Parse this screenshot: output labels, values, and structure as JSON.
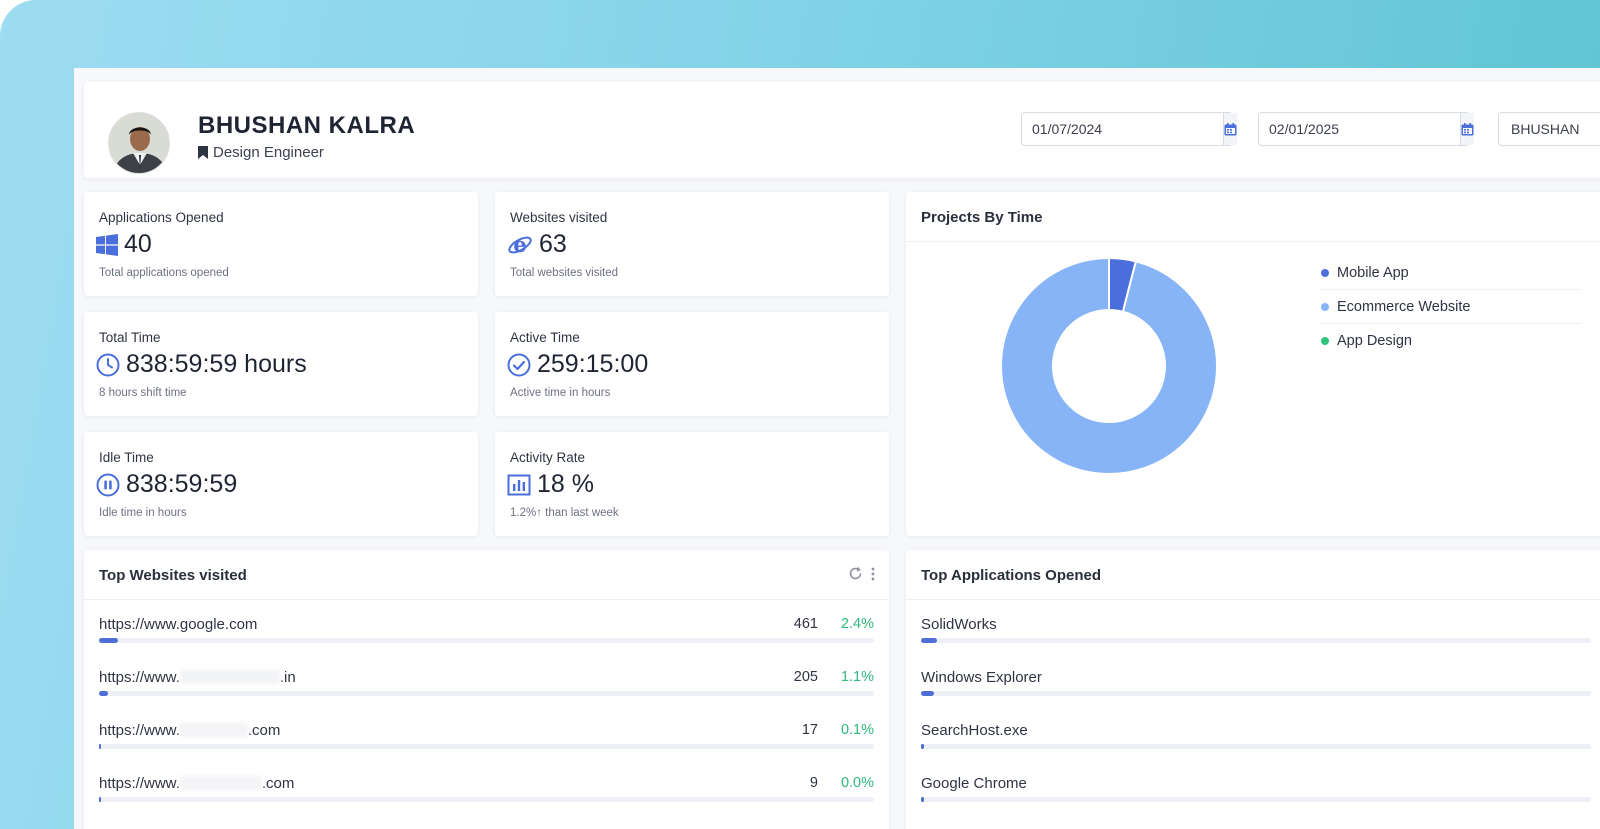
{
  "profile": {
    "name": "BHUSHAN KALRA",
    "role": "Design Engineer",
    "avatar_icon": "avatar-photo"
  },
  "filters": {
    "start_date": "01/07/2024",
    "end_date": "02/01/2025",
    "user": "BHUSHAN"
  },
  "stats": [
    {
      "label": "Applications Opened",
      "value": "40",
      "sub": "Total applications opened",
      "icon": "windows-icon"
    },
    {
      "label": "Websites visited",
      "value": "63",
      "sub": "Total websites visited",
      "icon": "internet-explorer-icon"
    },
    {
      "label": "Total Time",
      "value": "838:59:59 hours",
      "sub": "8 hours shift time",
      "icon": "clock-icon"
    },
    {
      "label": "Active Time",
      "value": "259:15:00",
      "sub": "Active time in hours",
      "icon": "check-circle-icon"
    },
    {
      "label": "Idle Time",
      "value": "838:59:59",
      "sub": "Idle time in hours",
      "icon": "pause-circle-icon"
    },
    {
      "label": "Activity Rate",
      "value": "18 %",
      "sub": "1.2%↑ than last week",
      "icon": "bar-chart-icon"
    }
  ],
  "projects": {
    "title": "Projects By Time",
    "legend": [
      {
        "label": "Mobile App",
        "color": "#4a6fdc"
      },
      {
        "label": "Ecommerce Website",
        "color": "#86b4f7"
      },
      {
        "label": "App Design",
        "color": "#2fc27b"
      }
    ],
    "chart_data": {
      "type": "pie",
      "title": "Projects By Time",
      "categories": [
        "Mobile App",
        "Ecommerce Website",
        "App Design"
      ],
      "values": [
        4,
        96,
        0
      ]
    }
  },
  "top_websites": {
    "title": "Top Websites visited",
    "items": [
      {
        "prefix": "https://www.google.com",
        "suffix": "",
        "count": "461",
        "pct": "2.4%",
        "bar": 2.4
      },
      {
        "prefix": "https://www.",
        "suffix": ".in",
        "count": "205",
        "pct": "1.1%",
        "bar": 1.1
      },
      {
        "prefix": "https://www.",
        "suffix": ".com",
        "count": "17",
        "pct": "0.1%",
        "bar": 0.1
      },
      {
        "prefix": "https://www.",
        "suffix": ".com",
        "count": "9",
        "pct": "0.0%",
        "bar": 0.0
      }
    ]
  },
  "top_applications": {
    "title": "Top Applications Opened",
    "items": [
      {
        "name": "SolidWorks",
        "bar": 2.4
      },
      {
        "name": "Windows Explorer",
        "bar": 2.0
      },
      {
        "name": "SearchHost.exe",
        "bar": 0.4
      },
      {
        "name": "Google Chrome",
        "bar": 0.4
      }
    ]
  }
}
